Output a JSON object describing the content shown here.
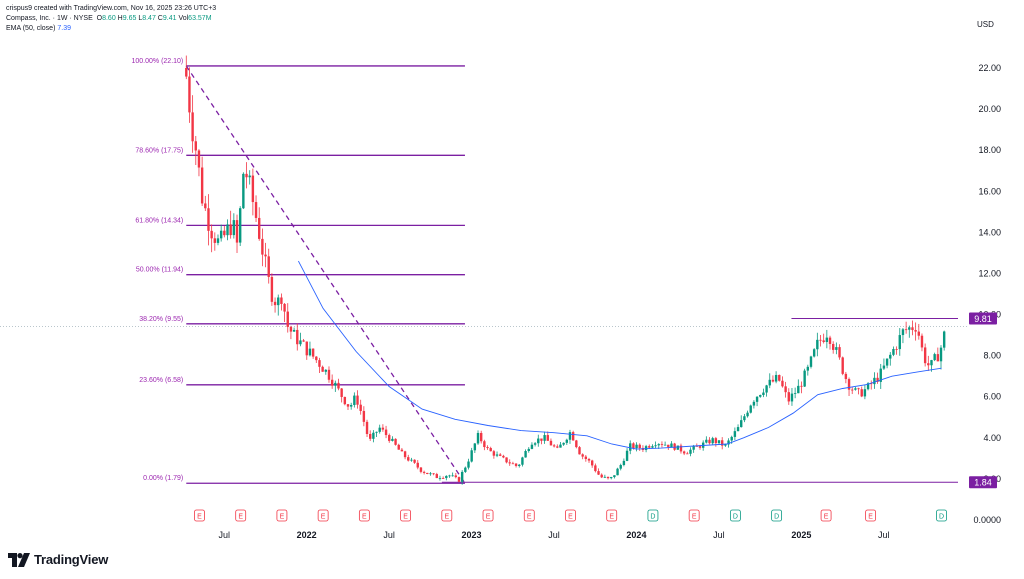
{
  "header": {
    "credit": "crispus9 created with TradingView.com, Nov 16, 2025 23:26 UTC+3",
    "symbol": "Compass, Inc. · 1W · NYSE",
    "o_label": "O",
    "o_value": "8.60",
    "h_label": "H",
    "h_value": "9.65",
    "l_label": "L",
    "l_value": "8.47",
    "c_label": "C",
    "c_value": "9.41",
    "vol_label": "Vol",
    "vol_value": "63.57M",
    "ema_label": "EMA (50, close)",
    "ema_value": "7.39"
  },
  "currency": "USD",
  "brand": "TradingView",
  "colors": {
    "up": "#089981",
    "down": "#f23645",
    "ema": "#2962ff",
    "fib": "#7b1fa2",
    "fib_text": "#9c27b0",
    "earnings": "#f23645",
    "dividend": "#089981",
    "price_tag": "#7b1fa2",
    "axis_text": "#131722"
  },
  "chart_data": {
    "type": "candlestick",
    "title": "",
    "y_axis": {
      "min": 0,
      "max": 22,
      "ticks": [
        "0.0000",
        "2.00",
        "4.00",
        "6.00",
        "8.00",
        "10.00",
        "12.00",
        "14.00",
        "16.00",
        "18.00",
        "20.00",
        "22.00"
      ],
      "tick_values": [
        0,
        2,
        4,
        6,
        8,
        10,
        12,
        14,
        16,
        18,
        20,
        22
      ]
    },
    "x_axis": {
      "labels": [
        {
          "text": "Jul",
          "t": 2021.5,
          "bold": false
        },
        {
          "text": "2022",
          "t": 2022.0,
          "bold": true
        },
        {
          "text": "Jul",
          "t": 2022.5,
          "bold": false
        },
        {
          "text": "2023",
          "t": 2023.0,
          "bold": true
        },
        {
          "text": "Jul",
          "t": 2023.5,
          "bold": false
        },
        {
          "text": "2024",
          "t": 2024.0,
          "bold": true
        },
        {
          "text": "Jul",
          "t": 2024.5,
          "bold": false
        },
        {
          "text": "2025",
          "t": 2025.0,
          "bold": true
        },
        {
          "text": "Jul",
          "t": 2025.5,
          "bold": false
        }
      ],
      "range": [
        2021.05,
        2025.95
      ]
    },
    "fib_levels": [
      {
        "label": "100.00% (22.10)",
        "value": 22.1
      },
      {
        "label": "78.60% (17.75)",
        "value": 17.75
      },
      {
        "label": "61.80% (14.34)",
        "value": 14.34
      },
      {
        "label": "50.00% (11.94)",
        "value": 11.94
      },
      {
        "label": "38.20% (9.55)",
        "value": 9.55
      },
      {
        "label": "23.60% (6.58)",
        "value": 6.58
      },
      {
        "label": "0.00% (1.79)",
        "value": 1.79
      }
    ],
    "fib_range_t": [
      2021.27,
      2022.96
    ],
    "trend_line": {
      "from": {
        "t": 2021.27,
        "v": 22.1
      },
      "to": {
        "t": 2022.96,
        "v": 1.79
      }
    },
    "resistance_line": {
      "t_start": 2024.94,
      "t_end": 2025.95,
      "value": 9.81
    },
    "support_line": {
      "t_start": 2022.82,
      "t_end": 2025.95,
      "value": 1.84
    },
    "current_price": {
      "value": 9.81,
      "label": "9.81"
    },
    "support_tag": {
      "value": 1.84,
      "label": "1.84"
    },
    "events": [
      {
        "type": "E",
        "t": 2021.35
      },
      {
        "type": "E",
        "t": 2021.6
      },
      {
        "type": "E",
        "t": 2021.85
      },
      {
        "type": "E",
        "t": 2022.1
      },
      {
        "type": "E",
        "t": 2022.35
      },
      {
        "type": "E",
        "t": 2022.6
      },
      {
        "type": "E",
        "t": 2022.85
      },
      {
        "type": "E",
        "t": 2023.1
      },
      {
        "type": "E",
        "t": 2023.35
      },
      {
        "type": "E",
        "t": 2023.6
      },
      {
        "type": "E",
        "t": 2023.85
      },
      {
        "type": "D",
        "t": 2024.1
      },
      {
        "type": "E",
        "t": 2024.35
      },
      {
        "type": "D",
        "t": 2024.6
      },
      {
        "type": "D",
        "t": 2024.85
      },
      {
        "type": "E",
        "t": 2025.15
      },
      {
        "type": "E",
        "t": 2025.42
      },
      {
        "type": "D",
        "t": 2025.85
      }
    ],
    "ema_series": [
      [
        2021.95,
        12.6
      ],
      [
        2022.1,
        10.3
      ],
      [
        2022.3,
        8.2
      ],
      [
        2022.5,
        6.5
      ],
      [
        2022.7,
        5.4
      ],
      [
        2022.9,
        4.9
      ],
      [
        2023.1,
        4.6
      ],
      [
        2023.3,
        4.35
      ],
      [
        2023.5,
        4.25
      ],
      [
        2023.7,
        4.1
      ],
      [
        2023.85,
        3.7
      ],
      [
        2024.0,
        3.45
      ],
      [
        2024.15,
        3.5
      ],
      [
        2024.35,
        3.6
      ],
      [
        2024.55,
        3.7
      ],
      [
        2024.65,
        4.0
      ],
      [
        2024.8,
        4.5
      ],
      [
        2024.95,
        5.2
      ],
      [
        2025.1,
        6.1
      ],
      [
        2025.25,
        6.4
      ],
      [
        2025.4,
        6.6
      ],
      [
        2025.55,
        7.0
      ],
      [
        2025.7,
        7.2
      ],
      [
        2025.85,
        7.39
      ]
    ],
    "price_path": [
      [
        2021.27,
        21.6
      ],
      [
        2021.3,
        19.5
      ],
      [
        2021.33,
        18.0
      ],
      [
        2021.37,
        15.5
      ],
      [
        2021.42,
        14.2
      ],
      [
        2021.47,
        13.4
      ],
      [
        2021.5,
        13.8
      ],
      [
        2021.55,
        14.5
      ],
      [
        2021.58,
        13.3
      ],
      [
        2021.62,
        17.3
      ],
      [
        2021.66,
        16.0
      ],
      [
        2021.7,
        14.5
      ],
      [
        2021.74,
        12.8
      ],
      [
        2021.78,
        11.2
      ],
      [
        2021.82,
        10.5
      ],
      [
        2021.85,
        11.0
      ],
      [
        2021.88,
        9.5
      ],
      [
        2021.92,
        9.0
      ],
      [
        2022.0,
        8.3
      ],
      [
        2022.08,
        7.6
      ],
      [
        2022.14,
        7.0
      ],
      [
        2022.2,
        6.2
      ],
      [
        2022.26,
        5.5
      ],
      [
        2022.3,
        6.0
      ],
      [
        2022.34,
        5.0
      ],
      [
        2022.38,
        3.8
      ],
      [
        2022.44,
        4.5
      ],
      [
        2022.5,
        4.0
      ],
      [
        2022.58,
        3.2
      ],
      [
        2022.64,
        2.8
      ],
      [
        2022.7,
        2.4
      ],
      [
        2022.78,
        2.1
      ],
      [
        2022.86,
        2.2
      ],
      [
        2022.92,
        1.9
      ],
      [
        2022.98,
        2.9
      ],
      [
        2023.04,
        4.1
      ],
      [
        2023.1,
        3.4
      ],
      [
        2023.18,
        3.0
      ],
      [
        2023.28,
        2.6
      ],
      [
        2023.36,
        3.8
      ],
      [
        2023.44,
        4.0
      ],
      [
        2023.52,
        3.4
      ],
      [
        2023.6,
        4.3
      ],
      [
        2023.66,
        3.2
      ],
      [
        2023.72,
        2.8
      ],
      [
        2023.78,
        2.1
      ],
      [
        2023.84,
        1.95
      ],
      [
        2023.9,
        2.6
      ],
      [
        2023.96,
        3.6
      ],
      [
        2024.04,
        3.5
      ],
      [
        2024.12,
        3.8
      ],
      [
        2024.22,
        3.6
      ],
      [
        2024.3,
        3.3
      ],
      [
        2024.38,
        3.6
      ],
      [
        2024.46,
        3.9
      ],
      [
        2024.54,
        3.6
      ],
      [
        2024.62,
        4.5
      ],
      [
        2024.7,
        5.8
      ],
      [
        2024.78,
        6.5
      ],
      [
        2024.86,
        6.9
      ],
      [
        2024.92,
        5.8
      ],
      [
        2024.98,
        6.4
      ],
      [
        2025.04,
        7.3
      ],
      [
        2025.1,
        8.6
      ],
      [
        2025.16,
        9.2
      ],
      [
        2025.22,
        8.0
      ],
      [
        2025.28,
        6.7
      ],
      [
        2025.34,
        6.1
      ],
      [
        2025.4,
        6.4
      ],
      [
        2025.48,
        7.1
      ],
      [
        2025.56,
        8.3
      ],
      [
        2025.62,
        9.2
      ],
      [
        2025.7,
        9.5
      ],
      [
        2025.74,
        8.0
      ],
      [
        2025.78,
        7.4
      ],
      [
        2025.84,
        8.2
      ],
      [
        2025.88,
        9.41
      ]
    ]
  }
}
